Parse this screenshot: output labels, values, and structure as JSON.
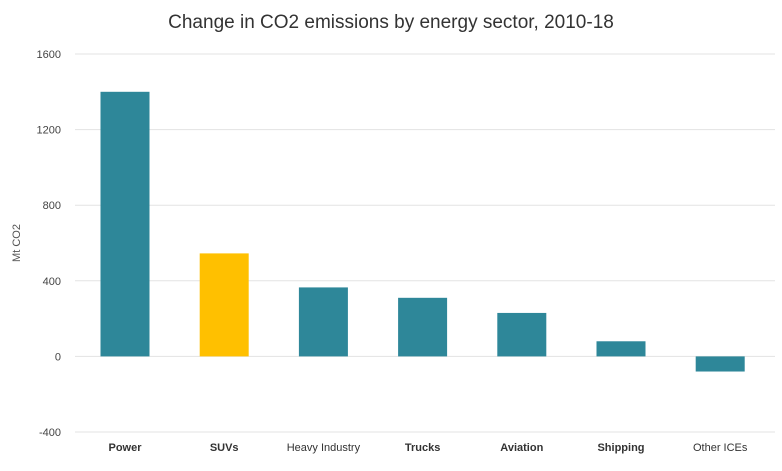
{
  "chart_data": {
    "type": "bar",
    "title": "Change in CO2 emissions by energy sector, 2010-18",
    "xlabel": "",
    "ylabel": "Mt CO2",
    "ylim": [
      -400,
      1600
    ],
    "yticks": [
      -400,
      0,
      400,
      800,
      1200,
      1600
    ],
    "grid": true,
    "categories": [
      "Power",
      "SUVs",
      "Heavy Industry",
      "Trucks",
      "Aviation",
      "Shipping",
      "Other ICEs"
    ],
    "bold_categories": [
      "Power",
      "SUVs",
      "Trucks",
      "Aviation",
      "Shipping"
    ],
    "values": [
      1400,
      545,
      365,
      310,
      230,
      80,
      -80
    ],
    "bar_colors": [
      "#2e8799",
      "#ffc000",
      "#2e8799",
      "#2e8799",
      "#2e8799",
      "#2e8799",
      "#2e8799"
    ]
  },
  "colors": {
    "primary": "#2e8799",
    "highlight": "#ffc000",
    "grid": "#e3e3e3"
  }
}
